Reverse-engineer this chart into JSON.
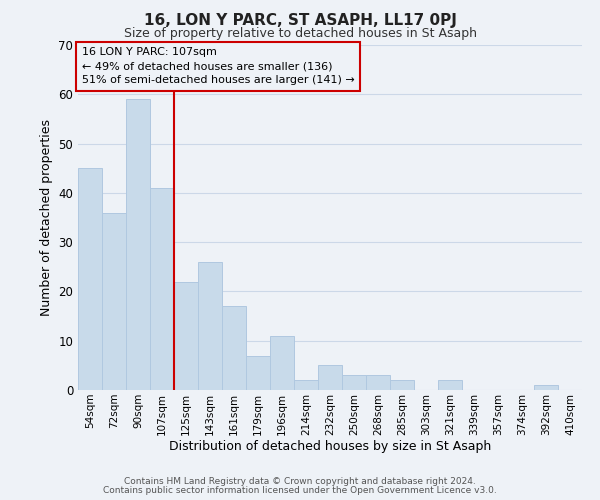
{
  "title": "16, LON Y PARC, ST ASAPH, LL17 0PJ",
  "subtitle": "Size of property relative to detached houses in St Asaph",
  "xlabel": "Distribution of detached houses by size in St Asaph",
  "ylabel": "Number of detached properties",
  "bar_color": "#c8daea",
  "bar_edge_color": "#b0c8e0",
  "categories": [
    "54sqm",
    "72sqm",
    "90sqm",
    "107sqm",
    "125sqm",
    "143sqm",
    "161sqm",
    "179sqm",
    "196sqm",
    "214sqm",
    "232sqm",
    "250sqm",
    "268sqm",
    "285sqm",
    "303sqm",
    "321sqm",
    "339sqm",
    "357sqm",
    "374sqm",
    "392sqm",
    "410sqm"
  ],
  "values": [
    45,
    36,
    59,
    41,
    22,
    26,
    17,
    7,
    11,
    2,
    5,
    3,
    3,
    2,
    0,
    2,
    0,
    0,
    0,
    1,
    0
  ],
  "ylim": [
    0,
    70
  ],
  "yticks": [
    0,
    10,
    20,
    30,
    40,
    50,
    60,
    70
  ],
  "marker_label": "16 LON Y PARC: 107sqm",
  "annotation_line1": "← 49% of detached houses are smaller (136)",
  "annotation_line2": "51% of semi-detached houses are larger (141) →",
  "marker_color": "#cc0000",
  "annotation_box_edge": "#cc0000",
  "footer_line1": "Contains HM Land Registry data © Crown copyright and database right 2024.",
  "footer_line2": "Contains public sector information licensed under the Open Government Licence v3.0.",
  "grid_color": "#ccd8e8",
  "background_color": "#eef2f7"
}
